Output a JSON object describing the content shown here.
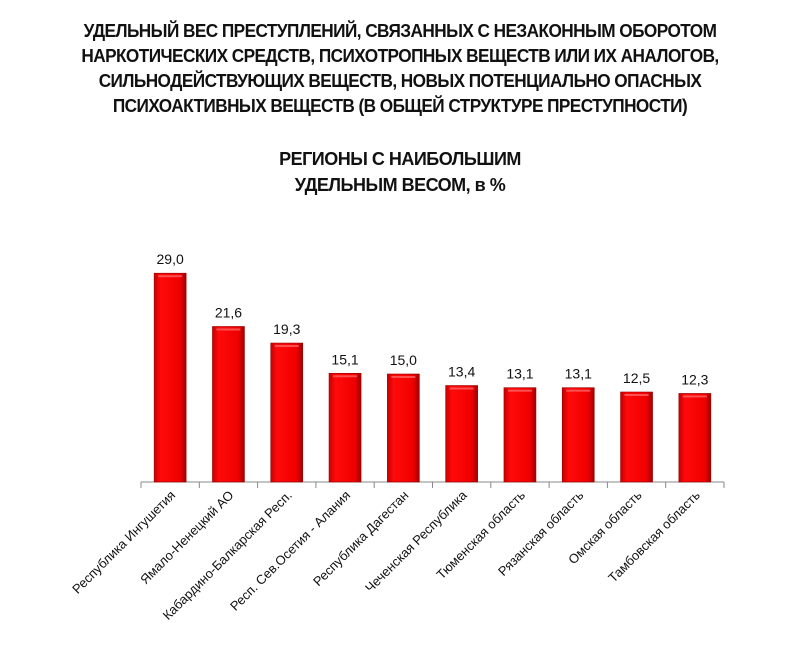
{
  "chart_data": {
    "type": "bar",
    "title": [
      "УДЕЛЬНЫЙ ВЕС ПРЕСТУПЛЕНИЙ, СВЯЗАННЫХ С НЕЗАКОННЫМ ОБОРОТОМ",
      "НАРКОТИЧЕСКИХ СРЕДСТВ, ПСИХОТРОПНЫХ ВЕЩЕСТВ ИЛИ ИХ АНАЛОГОВ,",
      "СИЛЬНОДЕЙСТВУЮЩИХ ВЕЩЕСТВ, НОВЫХ ПОТЕНЦИАЛЬНО ОПАСНЫХ",
      "ПСИХОАКТИВНЫХ ВЕЩЕСТВ (В ОБЩЕЙ СТРУКТУРЕ ПРЕСТУПНОСТИ)"
    ],
    "subtitle": [
      "РЕГИОНЫ С НАИБОЛЬШИМ",
      "УДЕЛЬНЫМ ВЕСОМ, в %"
    ],
    "categories": [
      "Республика Ингушетия",
      "Ямало-Ненецкий АО",
      "Кабардино-Балкарская Респ.",
      "Респ. Сев.Осетия - Алания",
      "Республика Дагестан",
      "Чеченская Республика",
      "Тюменская область",
      "Рязанская область",
      "Омская область",
      "Тамбовская область"
    ],
    "values": [
      29.0,
      21.6,
      19.3,
      15.1,
      15.0,
      13.4,
      13.1,
      13.1,
      12.5,
      12.3
    ],
    "value_labels": [
      "29,0",
      "21,6",
      "19,3",
      "15,1",
      "15,0",
      "13,4",
      "13,1",
      "13,1",
      "12,5",
      "12,3"
    ],
    "xlabel": "",
    "ylabel": "",
    "ylim": [
      0,
      30
    ],
    "grid": false,
    "legend": "none",
    "bar_color": "#ee0000"
  }
}
